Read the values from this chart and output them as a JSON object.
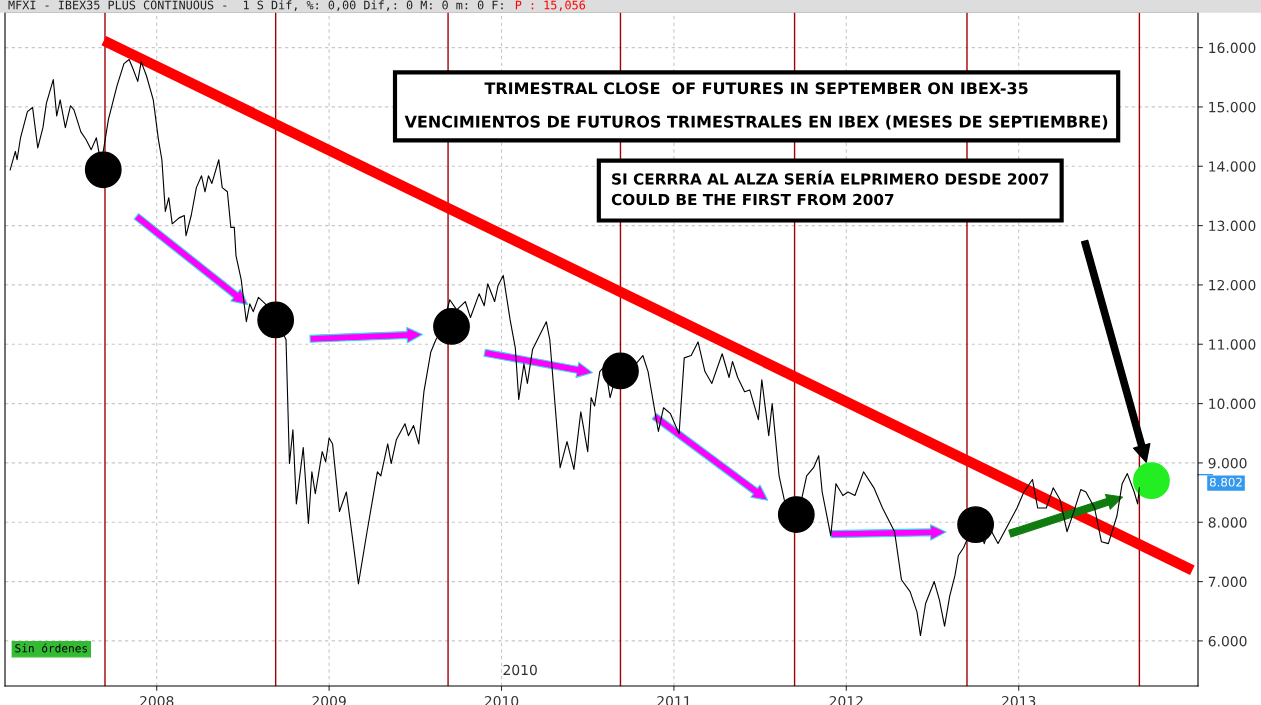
{
  "chart_data": {
    "type": "line",
    "title": "MFXI - IBEX35 PLUS CONTINUOUS -  1 S Dif, %: 0,00 Dif,: 0 M: 0 m: 0 F:",
    "subtitle": "P : 15,056",
    "annotations": [
      "TRIMESTRAL CLOSE  OF FUTURES IN SEPTEMBER ON IBEX-35\n\nVENCIMIENTOS DE FUTUROS TRIMESTRALES EN IBEX (MESES DE SEPTIEMBRE)",
      "SI CERRRA AL ALZA SERÍA ELPRIMERO DESDE 2007\nCOULD BE THE FIRST FROM 2007",
      "Sin órdenes",
      "2010"
    ],
    "series": [
      {
        "color": "#000000",
        "x": [
          2007.15,
          2007.18,
          2007.19,
          2007.21,
          2007.25,
          2007.28,
          2007.31,
          2007.34,
          2007.36,
          2007.4,
          2007.42,
          2007.44,
          2007.47,
          2007.5,
          2007.52,
          2007.56,
          2007.59,
          2007.62,
          2007.65,
          2007.67,
          2007.69,
          2007.72,
          2007.77,
          2007.81,
          2007.84,
          2007.86,
          2007.89,
          2007.91,
          2007.94,
          2007.98,
          2008.01,
          2008.03,
          2008.05,
          2008.07,
          2008.09,
          2008.13,
          2008.16,
          2008.17,
          2008.2,
          2008.23,
          2008.26,
          2008.28,
          2008.3,
          2008.32,
          2008.36,
          2008.38,
          2008.41,
          2008.43,
          2008.45,
          2008.46,
          2008.49,
          2008.52,
          2008.54,
          2008.56,
          2008.59,
          2008.63,
          2008.69,
          2008.72,
          2008.75,
          2008.77,
          2008.79,
          2008.81,
          2008.85,
          2008.88,
          2008.9,
          2008.92,
          2008.96,
          2008.98,
          2009.0,
          2009.02,
          2009.06,
          2009.1,
          2009.14,
          2009.17,
          2009.22,
          2009.28,
          2009.3,
          2009.34,
          2009.36,
          2009.39,
          2009.44,
          2009.46,
          2009.49,
          2009.52,
          2009.55,
          2009.59,
          2009.62,
          2009.65,
          2009.7,
          2009.74,
          2009.79,
          2009.82,
          2009.87,
          2009.9,
          2009.92,
          2009.96,
          2009.98,
          2010.01,
          2010.05,
          2010.08,
          2010.1,
          2010.13,
          2010.15,
          2010.18,
          2010.26,
          2010.28,
          2010.34,
          2010.38,
          2010.42,
          2010.46,
          2010.5,
          2010.52,
          2010.54,
          2010.57,
          2010.6,
          2010.63,
          2010.67,
          2010.75,
          2010.82,
          2010.85,
          2010.91,
          2010.94,
          2010.98,
          2011.03,
          2011.06,
          2011.1,
          2011.14,
          2011.18,
          2011.22,
          2011.28,
          2011.32,
          2011.34,
          2011.37,
          2011.41,
          2011.44,
          2011.49,
          2011.51,
          2011.55,
          2011.57,
          2011.61,
          2011.64,
          2011.68,
          2011.72,
          2011.77,
          2011.81,
          2011.84,
          2011.86,
          2011.91,
          2011.94,
          2011.98,
          2012.01,
          2012.05,
          2012.1,
          2012.16,
          2012.21,
          2012.28,
          2012.32,
          2012.37,
          2012.41,
          2012.43,
          2012.46,
          2012.51,
          2012.54,
          2012.57,
          2012.6,
          2012.63,
          2012.65,
          2012.68,
          2012.71,
          2012.77,
          2012.8,
          2012.83,
          2012.88,
          2012.93,
          2012.99,
          2013.03,
          2013.08,
          2013.11,
          2013.16,
          2013.2,
          2013.24,
          2013.28,
          2013.32,
          2013.36,
          2013.39,
          2013.44,
          2013.48,
          2013.52,
          2013.57,
          2013.6,
          2013.63,
          2013.67,
          2013.69,
          2013.7
        ],
        "values": [
          13.94,
          14.25,
          14.11,
          14.48,
          14.92,
          14.99,
          14.31,
          14.65,
          15.06,
          15.46,
          14.85,
          15.12,
          14.65,
          15.02,
          14.95,
          14.58,
          14.45,
          14.28,
          14.48,
          14.15,
          14.25,
          14.79,
          15.36,
          15.73,
          15.8,
          15.66,
          15.43,
          15.76,
          15.53,
          15.12,
          14.45,
          14.11,
          13.24,
          13.47,
          13.03,
          13.13,
          13.17,
          12.83,
          13.17,
          13.64,
          13.84,
          13.57,
          13.84,
          13.71,
          14.11,
          13.64,
          13.57,
          12.97,
          12.97,
          12.49,
          12.09,
          11.38,
          11.68,
          11.55,
          11.79,
          11.68,
          11.41,
          11.25,
          11.08,
          8.99,
          9.56,
          8.31,
          9.26,
          7.98,
          8.85,
          8.48,
          9.19,
          9.02,
          9.42,
          9.32,
          8.18,
          8.51,
          7.64,
          6.96,
          7.84,
          8.85,
          8.78,
          9.32,
          8.99,
          9.39,
          9.66,
          9.46,
          9.63,
          9.32,
          10.2,
          10.87,
          11.08,
          11.21,
          11.75,
          11.58,
          11.72,
          11.45,
          11.85,
          11.65,
          12.02,
          11.72,
          11.99,
          12.16,
          11.41,
          10.94,
          10.07,
          10.67,
          10.34,
          10.91,
          11.38,
          11.08,
          8.92,
          9.36,
          8.89,
          9.86,
          9.19,
          10.1,
          9.96,
          10.54,
          10.64,
          10.1,
          10.54,
          10.57,
          10.81,
          10.54,
          9.53,
          9.93,
          9.83,
          9.49,
          10.77,
          10.81,
          11.04,
          10.54,
          10.34,
          10.84,
          10.44,
          10.71,
          10.44,
          10.2,
          10.23,
          9.73,
          10.4,
          9.46,
          10.0,
          8.78,
          8.38,
          8.18,
          8.11,
          8.78,
          8.92,
          9.12,
          8.51,
          7.77,
          8.65,
          8.45,
          8.51,
          8.45,
          8.85,
          8.58,
          8.24,
          7.84,
          7.03,
          6.83,
          6.49,
          6.09,
          6.63,
          7.0,
          6.69,
          6.25,
          6.76,
          7.1,
          7.44,
          7.57,
          7.77,
          7.98,
          7.64,
          7.91,
          7.64,
          7.91,
          8.24,
          8.51,
          8.72,
          8.24,
          8.24,
          8.58,
          8.38,
          7.84,
          8.18,
          8.55,
          8.51,
          8.24,
          7.67,
          7.64,
          8.11,
          8.65,
          8.82,
          8.51,
          8.31,
          8.58
        ]
      },
      {
        "type": "scatter",
        "marker": "circle",
        "colors": [
          "#000000",
          "#000000",
          "#000000",
          "#000000",
          "#000000",
          "#000000",
          "#22ee22"
        ],
        "x": [
          2007.69,
          2008.69,
          2009.71,
          2010.69,
          2011.71,
          2012.75,
          2013.77
        ],
        "values": [
          13.94,
          11.41,
          11.3,
          10.55,
          8.13,
          7.96,
          8.7
        ]
      },
      {
        "type": "line",
        "color": "#ff0000",
        "x": [
          2007.72,
          2013.98
        ],
        "values": [
          16.08,
          7.23
        ]
      }
    ],
    "ref_lines": [
      {
        "axis": "x",
        "value": 2007.7,
        "color": "#a00000"
      },
      {
        "axis": "x",
        "value": 2008.69,
        "color": "#a00000"
      },
      {
        "axis": "x",
        "value": 2009.69,
        "color": "#a00000"
      },
      {
        "axis": "x",
        "value": 2010.69,
        "color": "#a00000"
      },
      {
        "axis": "x",
        "value": 2011.7,
        "color": "#a00000"
      },
      {
        "axis": "x",
        "value": 2012.7,
        "color": "#a00000"
      },
      {
        "axis": "x",
        "value": 2013.7,
        "color": "#a00000"
      },
      {
        "axis": "y",
        "value": 8.802,
        "label": "8.802",
        "color": "#3399ee"
      }
    ],
    "xlim": [
      2007.12,
      2014.04
    ],
    "xticks": [
      2008,
      2009,
      2010,
      2011,
      2012,
      2013
    ],
    "ylim": [
      5.24,
      16.6
    ],
    "yticks": [
      {
        "value": 6,
        "label": "6.000"
      },
      {
        "value": 7,
        "label": "7.000"
      },
      {
        "value": 8,
        "label": "8.000"
      },
      {
        "value": 9,
        "label": "9.000"
      },
      {
        "value": 10,
        "label": "10.000"
      },
      {
        "value": 11,
        "label": "11.000"
      },
      {
        "value": 12,
        "label": "12.000"
      },
      {
        "value": 13,
        "label": "13.000"
      },
      {
        "value": 14,
        "label": "14.000"
      },
      {
        "value": 15,
        "label": "15.000"
      },
      {
        "value": 16,
        "label": "16.000"
      }
    ],
    "grid": true,
    "marker": "none"
  }
}
